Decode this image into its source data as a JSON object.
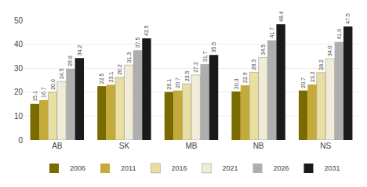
{
  "chart_data": {
    "type": "bar",
    "categories": [
      "AB",
      "SK",
      "MB",
      "NB",
      "NS"
    ],
    "series": [
      {
        "name": "2006",
        "color": "#7A6B00",
        "values": [
          15.1,
          22.5,
          20.1,
          20.3,
          20.7
        ],
        "value_labels": [
          "15.1",
          "22.5",
          "20.1",
          "20.3",
          "20.7"
        ]
      },
      {
        "name": "2011",
        "color": "#C4AA3A",
        "values": [
          16.7,
          23.1,
          20.7,
          22.9,
          23.2
        ],
        "value_labels": [
          "16.7",
          "23.1",
          "20.7",
          "22.9",
          "23.2"
        ]
      },
      {
        "name": "2016",
        "color": "#E8DFA0",
        "values": [
          20.0,
          26.2,
          23.5,
          28.3,
          28.2
        ],
        "value_labels": [
          "20.0",
          "26.2",
          "23.5",
          "28.3",
          "28.2"
        ]
      },
      {
        "name": "2021",
        "color": "#F0ECD8",
        "values": [
          24.5,
          31.3,
          27.2,
          34.5,
          34.0
        ],
        "value_labels": [
          "24.5",
          "31.3",
          "27.2",
          "34.5",
          "34.0"
        ]
      },
      {
        "name": "2026",
        "color": "#AEAEAE",
        "values": [
          29.8,
          37.5,
          31.7,
          41.7,
          41.0
        ],
        "value_labels": [
          "29.8",
          "37.5",
          "31.7",
          "41.7",
          "41.0"
        ]
      },
      {
        "name": "2031",
        "color": "#1A1A1A",
        "values": [
          34.2,
          42.5,
          35.5,
          48.4,
          47.5
        ],
        "value_labels": [
          "34.2",
          "42.5",
          "35.5",
          "48.4",
          "47.5"
        ]
      }
    ],
    "ylim": [
      0,
      50
    ],
    "yticks": [
      0,
      10,
      20,
      30,
      40,
      50
    ],
    "grid": true,
    "legend": "bottom",
    "data_labels": true
  }
}
